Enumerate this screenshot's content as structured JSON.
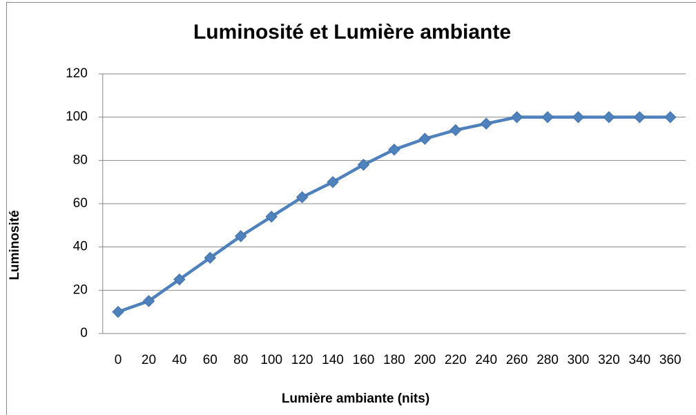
{
  "chart_data": {
    "type": "line",
    "title": "Luminosité et Lumière ambiante",
    "xlabel": "Lumière ambiante (nits)",
    "ylabel": "Luminosité",
    "categories": [
      "0",
      "20",
      "40",
      "60",
      "80",
      "100",
      "120",
      "140",
      "160",
      "180",
      "200",
      "220",
      "240",
      "260",
      "280",
      "300",
      "320",
      "340",
      "360"
    ],
    "series": [
      {
        "name": "Luminosité",
        "color": "#4f81bd",
        "values": [
          10,
          15,
          25,
          35,
          45,
          54,
          63,
          70,
          78,
          85,
          90,
          94,
          97,
          100,
          100,
          100,
          100,
          100,
          100
        ]
      }
    ],
    "ylim": [
      0,
      120
    ],
    "yticks": [
      0,
      20,
      40,
      60,
      80,
      100,
      120
    ],
    "grid": true
  }
}
